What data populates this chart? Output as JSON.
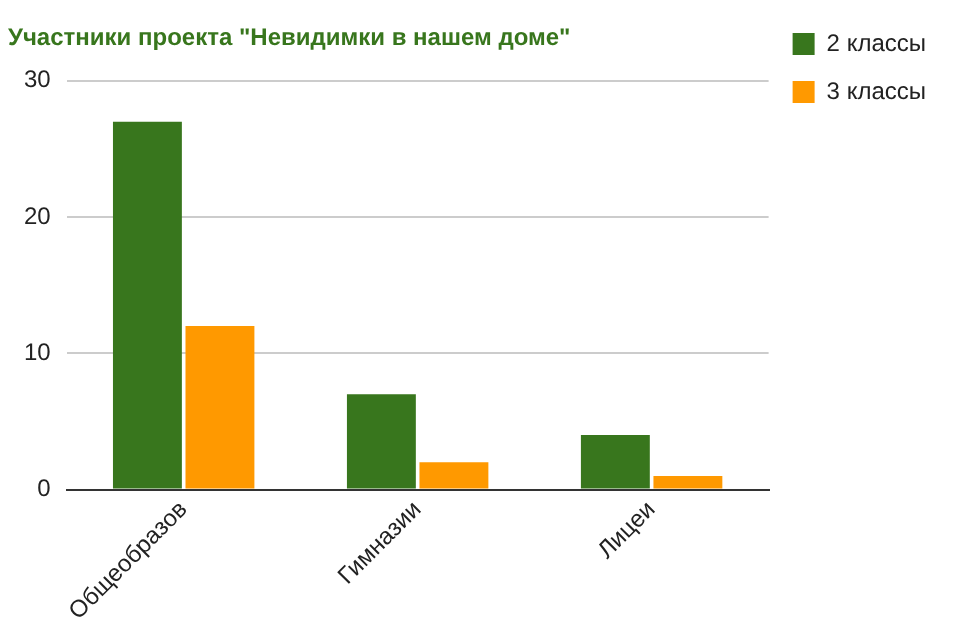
{
  "chart_data": {
    "type": "bar",
    "title": "Участники проекта \"Невидимки в нашем доме\"",
    "categories": [
      "Общеобразов",
      "Гимназии",
      "Лицеи"
    ],
    "series": [
      {
        "name": "2 классы",
        "color": "#38761d",
        "values": [
          27,
          7,
          4
        ]
      },
      {
        "name": "3 классы",
        "color": "#ff9900",
        "values": [
          12,
          2,
          1
        ]
      }
    ],
    "ylim": [
      0,
      30
    ],
    "yticks": [
      0,
      10,
      20,
      30
    ],
    "grid": "y",
    "legend": "top right"
  }
}
